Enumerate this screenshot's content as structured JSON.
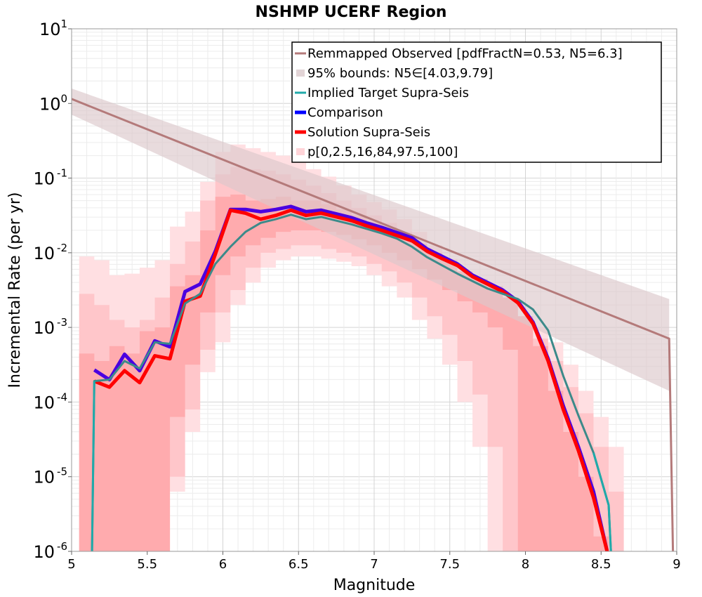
{
  "chart_data": {
    "type": "line",
    "title": "NSHMP UCERF Region",
    "xlabel": "Magnitude",
    "ylabel": "Incremental Rate (per yr)",
    "xlim": [
      5,
      9
    ],
    "ylim_log10": [
      -6,
      1
    ],
    "y_scale": "log",
    "x_ticks": [
      5,
      5.5,
      6,
      6.5,
      7,
      7.5,
      8,
      8.5,
      9
    ],
    "x_tick_labels": [
      "5",
      "5.5",
      "6",
      "6.5",
      "7",
      "7.5",
      "8",
      "8.5",
      "9"
    ],
    "y_tick_labels": [
      {
        "base": "10",
        "exp": "1"
      },
      {
        "base": "10",
        "exp": "0"
      },
      {
        "base": "10",
        "exp": "-1"
      },
      {
        "base": "10",
        "exp": "-2"
      },
      {
        "base": "10",
        "exp": "-3"
      },
      {
        "base": "10",
        "exp": "-4"
      },
      {
        "base": "10",
        "exp": "-5"
      },
      {
        "base": "10",
        "exp": "-6"
      }
    ],
    "y_tick_exponents": [
      1,
      0,
      -1,
      -2,
      -3,
      -4,
      -5,
      -6
    ],
    "grid": true,
    "legend_position": "top-right",
    "legend": [
      {
        "label": "Remmapped Observed [pdfFractN=0.53, N5=6.3]",
        "color": "#b47a7a",
        "kind": "line"
      },
      {
        "label": "95% bounds: N5∈[4.03,9.79]",
        "color": "#e2d4d6",
        "kind": "band"
      },
      {
        "label": "Implied Target Supra-Seis",
        "color": "#20aaaa",
        "kind": "line"
      },
      {
        "label": "Comparison",
        "color": "#0000ff",
        "kind": "thick-line"
      },
      {
        "label": "Solution Supra-Seis",
        "color": "#ff0000",
        "kind": "thick-line"
      },
      {
        "label": "p[0,2.5,16,84,97.5,100]",
        "color": "#ffd4d8",
        "kind": "band"
      }
    ],
    "observed": {
      "name": "Remmapped Observed [pdfFractN=0.53, N5=6.3]",
      "x": [
        5.0,
        8.95,
        8.975
      ],
      "log10_y": [
        0.06,
        -3.15,
        -6.0
      ]
    },
    "observed_bounds": {
      "name": "95% bounds: N5∈[4.03,9.79]",
      "x": [
        5.0,
        8.95
      ],
      "log10_upper": [
        0.2,
        -2.62
      ],
      "log10_lower": [
        -0.15,
        -3.85
      ]
    },
    "implied_target": {
      "name": "Implied Target Supra-Seis",
      "x": [
        5.135,
        5.15,
        5.25,
        5.35,
        5.45,
        5.55,
        5.65,
        5.75,
        5.85,
        5.95,
        6.05,
        6.15,
        6.25,
        6.35,
        6.45,
        6.55,
        6.65,
        6.75,
        6.85,
        6.95,
        7.05,
        7.15,
        7.25,
        7.35,
        7.45,
        7.55,
        7.65,
        7.75,
        7.85,
        7.95,
        8.05,
        8.15,
        8.25,
        8.35,
        8.45,
        8.55,
        8.565
      ],
      "log10_y": [
        -6.0,
        -3.72,
        -3.7,
        -3.45,
        -3.55,
        -3.2,
        -3.22,
        -2.68,
        -2.55,
        -2.15,
        -1.92,
        -1.72,
        -1.6,
        -1.55,
        -1.49,
        -1.55,
        -1.52,
        -1.57,
        -1.62,
        -1.68,
        -1.74,
        -1.81,
        -1.92,
        -2.06,
        -2.17,
        -2.28,
        -2.38,
        -2.48,
        -2.55,
        -2.62,
        -2.76,
        -3.04,
        -3.65,
        -4.18,
        -4.68,
        -5.38,
        -6.0
      ]
    },
    "comparison": {
      "name": "Comparison",
      "x": [
        5.15,
        5.25,
        5.35,
        5.45,
        5.55,
        5.65,
        5.75,
        5.85,
        5.95,
        6.05,
        6.15,
        6.25,
        6.35,
        6.45,
        6.55,
        6.65,
        6.75,
        6.85,
        6.95,
        7.05,
        7.15,
        7.25,
        7.35,
        7.45,
        7.55,
        7.65,
        7.75,
        7.85,
        7.95,
        8.05,
        8.15,
        8.25,
        8.35,
        8.45,
        8.54
      ],
      "log10_y": [
        -3.57,
        -3.7,
        -3.36,
        -3.58,
        -3.18,
        -3.26,
        -2.52,
        -2.42,
        -1.98,
        -1.42,
        -1.42,
        -1.45,
        -1.42,
        -1.38,
        -1.45,
        -1.43,
        -1.48,
        -1.53,
        -1.6,
        -1.66,
        -1.73,
        -1.8,
        -1.95,
        -2.05,
        -2.15,
        -2.3,
        -2.4,
        -2.5,
        -2.65,
        -2.93,
        -3.42,
        -4.05,
        -4.6,
        -5.2,
        -6.0
      ]
    },
    "solution": {
      "name": "Solution Supra-Seis",
      "x": [
        5.15,
        5.25,
        5.35,
        5.45,
        5.55,
        5.65,
        5.75,
        5.85,
        5.95,
        6.05,
        6.15,
        6.25,
        6.35,
        6.45,
        6.55,
        6.65,
        6.75,
        6.85,
        6.95,
        7.05,
        7.15,
        7.25,
        7.35,
        7.45,
        7.55,
        7.65,
        7.75,
        7.85,
        7.95,
        8.05,
        8.15,
        8.25,
        8.35,
        8.45,
        8.54
      ],
      "log10_y": [
        -3.72,
        -3.8,
        -3.58,
        -3.74,
        -3.38,
        -3.42,
        -2.65,
        -2.58,
        -2.02,
        -1.43,
        -1.47,
        -1.55,
        -1.5,
        -1.43,
        -1.5,
        -1.47,
        -1.52,
        -1.57,
        -1.64,
        -1.7,
        -1.77,
        -1.84,
        -1.98,
        -2.08,
        -2.17,
        -2.32,
        -2.42,
        -2.52,
        -2.67,
        -2.95,
        -3.45,
        -4.1,
        -4.65,
        -5.28,
        -6.0
      ]
    },
    "percentile_bands": {
      "name": "p[0,2.5,16,84,97.5,100]",
      "x": [
        5.1,
        5.2,
        5.3,
        5.4,
        5.5,
        5.6,
        5.7,
        5.8,
        5.9,
        6.0,
        6.1,
        6.2,
        6.3,
        6.4,
        6.5,
        6.6,
        6.7,
        6.8,
        6.9,
        7.0,
        7.1,
        7.2,
        7.3,
        7.4,
        7.5,
        7.6,
        7.7,
        7.8,
        7.9,
        8.0,
        8.1,
        8.2,
        8.3,
        8.4,
        8.5,
        8.6
      ],
      "outer": {
        "upper": [
          -2.05,
          -2.1,
          -2.3,
          -2.28,
          -2.2,
          -2.1,
          -1.65,
          -1.45,
          -1.05,
          -0.65,
          -0.55,
          -0.6,
          -0.65,
          -0.7,
          -0.78,
          -0.88,
          -0.98,
          -1.1,
          -1.22,
          -1.32,
          -1.42,
          -1.55,
          -1.72,
          -1.9,
          -2.08,
          -2.25,
          -2.42,
          -2.58,
          -2.7,
          -2.85,
          -3.0,
          -3.2,
          -3.5,
          -3.85,
          -4.2,
          -4.6
        ],
        "lower": [
          -6.0,
          -6.0,
          -6.0,
          -6.0,
          -6.0,
          -6.0,
          -5.2,
          -4.4,
          -3.6,
          -3.2,
          -2.7,
          -2.4,
          -2.2,
          -2.1,
          -2.05,
          -2.05,
          -2.08,
          -2.12,
          -2.18,
          -2.3,
          -2.45,
          -2.6,
          -2.9,
          -3.15,
          -3.5,
          -4.0,
          -4.6,
          -6.0,
          -6.0,
          -6.0,
          -6.0,
          -6.0,
          -6.0,
          -6.0,
          -6.0,
          -6.0
        ]
      },
      "middle": {
        "upper": [
          -2.55,
          -2.7,
          -2.9,
          -3.0,
          -2.9,
          -2.6,
          -2.15,
          -1.85,
          -1.3,
          -0.95,
          -0.85,
          -0.88,
          -0.9,
          -0.95,
          -1.02,
          -1.1,
          -1.2,
          -1.3,
          -1.4,
          -1.5,
          -1.6,
          -1.72,
          -1.88,
          -2.05,
          -2.2,
          -2.38,
          -2.52,
          -2.68,
          -2.82,
          -3.0,
          -3.15,
          -3.45,
          -3.8,
          -4.15,
          -4.6,
          -5.2
        ],
        "lower": [
          -6.0,
          -6.0,
          -6.0,
          -6.0,
          -6.0,
          -6.0,
          -5.0,
          -4.1,
          -3.3,
          -2.8,
          -2.5,
          -2.2,
          -2.0,
          -1.95,
          -1.9,
          -1.9,
          -1.95,
          -2.0,
          -2.05,
          -2.15,
          -2.25,
          -2.4,
          -2.6,
          -2.85,
          -3.1,
          -3.45,
          -3.9,
          -4.6,
          -6.0,
          -6.0,
          -6.0,
          -6.0,
          -6.0,
          -6.0,
          -6.0,
          -6.0
        ]
      },
      "inner": {
        "upper": [
          -3.35,
          -3.45,
          -3.25,
          -3.35,
          -3.05,
          -3.0,
          -2.45,
          -2.3,
          -1.7,
          -1.25,
          -1.22,
          -1.3,
          -1.28,
          -1.25,
          -1.3,
          -1.3,
          -1.35,
          -1.42,
          -1.5,
          -1.58,
          -1.66,
          -1.75,
          -1.88,
          -2.0,
          -2.1,
          -2.25,
          -2.35,
          -2.45,
          -2.6,
          -2.85,
          -3.25,
          -3.85,
          -4.4,
          -5.0,
          -5.8,
          -6.0
        ],
        "lower": [
          -6.0,
          -6.0,
          -6.0,
          -6.0,
          -6.0,
          -6.0,
          -4.2,
          -3.5,
          -2.8,
          -2.3,
          -2.05,
          -1.9,
          -1.8,
          -1.72,
          -1.7,
          -1.7,
          -1.72,
          -1.76,
          -1.82,
          -1.9,
          -2.0,
          -2.1,
          -2.22,
          -2.36,
          -2.5,
          -2.65,
          -2.8,
          -3.0,
          -3.3,
          -6.0,
          -6.0,
          -6.0,
          -6.0,
          -6.0,
          -6.0,
          -6.0
        ]
      }
    }
  }
}
